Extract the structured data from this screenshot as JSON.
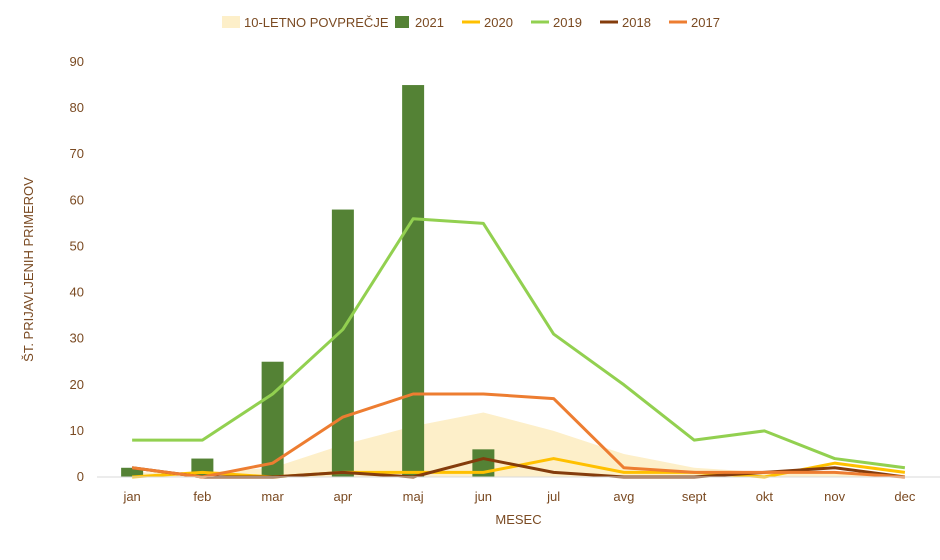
{
  "chart_data": {
    "type": "bar",
    "title": "",
    "xlabel": "MESEC",
    "ylabel": "ŠT. PRIJAVLJENIH PRIMEROV",
    "ylim": [
      0,
      90
    ],
    "yticks": [
      0,
      10,
      20,
      30,
      40,
      50,
      60,
      70,
      80,
      90
    ],
    "grid": false,
    "legend_position": "top",
    "categories": [
      "jan",
      "feb",
      "mar",
      "apr",
      "maj",
      "jun",
      "jul",
      "avg",
      "sept",
      "okt",
      "nov",
      "dec"
    ],
    "series": [
      {
        "name": "10-LETNO POVPREČJE",
        "type": "area",
        "color": "#fdefc9",
        "values": [
          1,
          1,
          2,
          7,
          11,
          14,
          10,
          5,
          2,
          1,
          1,
          0.5
        ]
      },
      {
        "name": "2021",
        "type": "bar",
        "color": "#548235",
        "values": [
          2,
          4,
          25,
          58,
          85,
          6,
          null,
          null,
          null,
          null,
          null,
          null
        ]
      },
      {
        "name": "2020",
        "type": "line",
        "color": "#ffc000",
        "values": [
          0,
          1,
          0,
          1,
          1,
          1,
          4,
          1,
          1,
          0,
          3,
          1
        ]
      },
      {
        "name": "2019",
        "type": "line",
        "color": "#92d050",
        "values": [
          8,
          8,
          18,
          32,
          56,
          55,
          31,
          20,
          8,
          10,
          4,
          2
        ]
      },
      {
        "name": "2018",
        "type": "line",
        "color": "#843c0c",
        "values": [
          2,
          0,
          0,
          1,
          0,
          4,
          1,
          0,
          0,
          1,
          2,
          0
        ]
      },
      {
        "name": "2017",
        "type": "line",
        "color": "#ed7d31",
        "values": [
          2,
          0,
          3,
          13,
          18,
          18,
          17,
          2,
          1,
          1,
          1,
          0
        ]
      }
    ]
  }
}
